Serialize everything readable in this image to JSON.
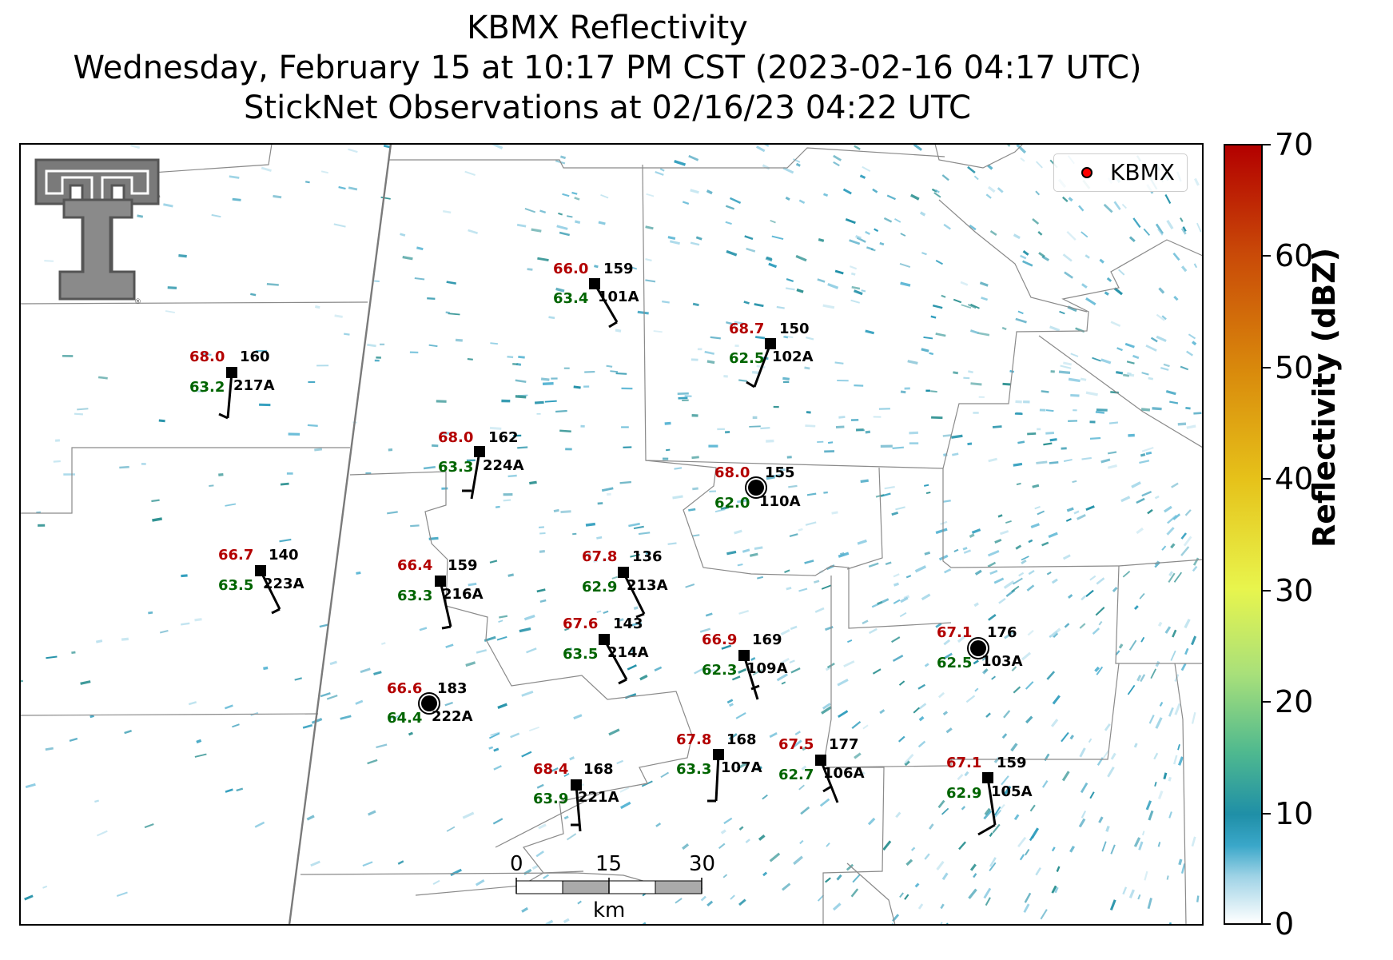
{
  "title": {
    "line1": "KBMX Reflectivity",
    "line2": "Wednesday, February 15 at 10:17 PM CST (2023-02-16 04:17 UTC)",
    "line3": "StickNet Observations at 02/16/23 04:22 UTC"
  },
  "legend": {
    "label": "KBMX",
    "marker_color": "#ff0000"
  },
  "colorbar": {
    "label": "Reflectivity (dBZ)",
    "ticks": [
      "70",
      "60",
      "50",
      "40",
      "30",
      "20",
      "10",
      "0"
    ]
  },
  "scale_bar": {
    "ticks": [
      "0",
      "15",
      "30"
    ],
    "unit": "km"
  },
  "logo": {
    "name": "texas-tech-double-t-logo"
  },
  "colors": {
    "temperature": "#b30000",
    "dewpoint": "#006400",
    "station": "#000000",
    "radar_echo": "#1f8fa7"
  },
  "stations": [
    {
      "id": "101A",
      "temp": "66.0",
      "dew": "63.4",
      "pres": "159",
      "calm": false
    },
    {
      "id": "102A",
      "temp": "68.7",
      "dew": "62.5",
      "pres": "150",
      "calm": false
    },
    {
      "id": "217A",
      "temp": "68.0",
      "dew": "63.2",
      "pres": "160",
      "calm": false
    },
    {
      "id": "224A",
      "temp": "68.0",
      "dew": "63.3",
      "pres": "162",
      "calm": false
    },
    {
      "id": "110A",
      "temp": "68.0",
      "dew": "62.0",
      "pres": "155",
      "calm": true
    },
    {
      "id": "223A",
      "temp": "66.7",
      "dew": "63.5",
      "pres": "140",
      "calm": false
    },
    {
      "id": "216A",
      "temp": "66.4",
      "dew": "63.3",
      "pres": "159",
      "calm": false
    },
    {
      "id": "213A",
      "temp": "67.8",
      "dew": "62.9",
      "pres": "136",
      "calm": false
    },
    {
      "id": "214A",
      "temp": "67.6",
      "dew": "63.5",
      "pres": "143",
      "calm": false
    },
    {
      "id": "109A",
      "temp": "66.9",
      "dew": "62.3",
      "pres": "169",
      "calm": false
    },
    {
      "id": "103A",
      "temp": "67.1",
      "dew": "62.5",
      "pres": "176",
      "calm": true
    },
    {
      "id": "222A",
      "temp": "66.6",
      "dew": "64.4",
      "pres": "183",
      "calm": true
    },
    {
      "id": "107A",
      "temp": "67.8",
      "dew": "63.3",
      "pres": "168",
      "calm": false
    },
    {
      "id": "106A",
      "temp": "67.5",
      "dew": "62.7",
      "pres": "177",
      "calm": false
    },
    {
      "id": "221A",
      "temp": "68.4",
      "dew": "63.9",
      "pres": "168",
      "calm": false
    },
    {
      "id": "105A",
      "temp": "67.1",
      "dew": "62.9",
      "pres": "159",
      "calm": false
    }
  ]
}
